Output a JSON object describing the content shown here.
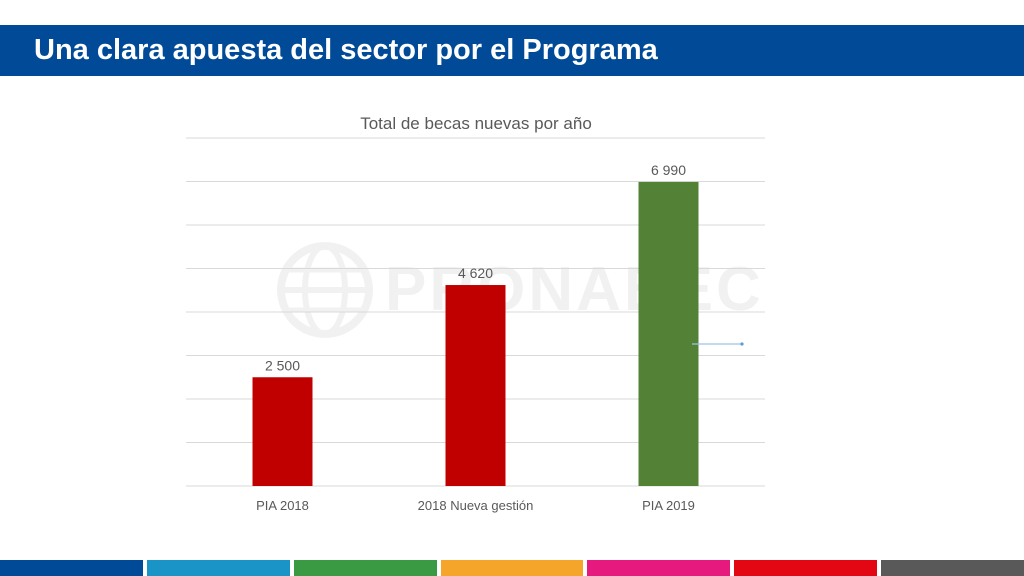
{
  "page": {
    "title": "Una clara apuesta del sector por el Programa"
  },
  "watermark": {
    "text": "PRONABEC"
  },
  "colors": {
    "header": "#004a97",
    "bar_red": "#c00000",
    "bar_green": "#538135",
    "grid": "#d9d9d9",
    "text": "#595959"
  },
  "chart_data": {
    "type": "bar",
    "title": "Total de becas nuevas por año",
    "categories": [
      "PIA 2018",
      "2018 Nueva gestión",
      "PIA 2019"
    ],
    "values": [
      2500,
      4620,
      6990
    ],
    "data_labels": [
      "2 500",
      "4 620",
      "6 990"
    ],
    "bar_colors": [
      "#c00000",
      "#c00000",
      "#538135"
    ],
    "ylim": [
      0,
      8000
    ],
    "grid": true,
    "xlabel": "",
    "ylabel": ""
  },
  "footer_colors": [
    "#004a97",
    "#1a93c6",
    "#3a9a44",
    "#f4a52a",
    "#e6197f",
    "#e30613",
    "#595959"
  ]
}
